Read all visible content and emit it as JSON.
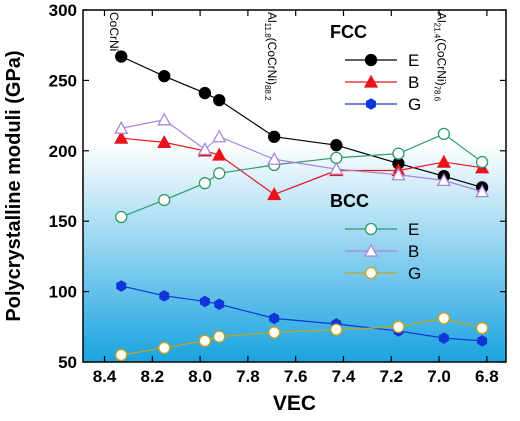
{
  "chart_data": {
    "type": "line",
    "x_label": "VEC",
    "y_label": "Polycrystalline moduli (GPa)",
    "x": [
      8.33,
      8.15,
      7.98,
      7.92,
      7.69,
      7.43,
      7.17,
      6.98,
      6.82
    ],
    "xlim": [
      8.49,
      6.72
    ],
    "xticks": [
      8.4,
      8.2,
      {
        "value": 8,
        "label": "8.0"
      },
      7.8,
      7.6,
      7.4,
      7.2,
      {
        "value": 7,
        "label": "7.0"
      },
      6.8
    ],
    "ylim": [
      50,
      300
    ],
    "yticks": [
      50,
      100,
      150,
      200,
      250,
      300
    ],
    "annotations": [
      {
        "parts": [
          "CoCrNi"
        ],
        "x": 8.36
      },
      {
        "parts": [
          "Al",
          "11.8",
          "(CoCrNi)",
          "88.2"
        ],
        "x": 7.7
      },
      {
        "parts": [
          "Al",
          "21.4",
          "(CoCrNi)",
          "78.6"
        ],
        "x": 6.99
      }
    ],
    "groups": [
      {
        "name": "FCC",
        "filled": true,
        "series": [
          {
            "name": "E",
            "color": "#000000",
            "marker": "circle",
            "values": [
              267,
              253,
              241,
              236,
              210,
              204,
              191,
              182,
              174
            ]
          },
          {
            "name": "B",
            "color": "#e8141b",
            "marker": "triangle",
            "values": [
              209,
              206,
              200,
              197,
              169,
              186,
              186,
              192,
              188
            ]
          },
          {
            "name": "G",
            "color": "#1035d8",
            "marker": "hexagon",
            "values": [
              104,
              97,
              93,
              91,
              81,
              77,
              72,
              67,
              65
            ]
          }
        ]
      },
      {
        "name": "BCC",
        "filled": false,
        "series": [
          {
            "name": "E",
            "color": "#2e9b6a",
            "marker": "circle",
            "values": [
              153,
              165,
              177,
              184,
              190,
              195,
              198,
              212,
              192
            ]
          },
          {
            "name": "B",
            "color": "#a884d8",
            "marker": "triangle",
            "values": [
              216,
              222,
              201,
              210,
              194,
              187,
              183,
              179,
              171
            ]
          },
          {
            "name": "G",
            "color": "#c9a21a",
            "marker": "circle",
            "values": [
              55,
              60,
              65,
              68,
              71,
              73,
              75,
              81,
              74
            ]
          }
        ]
      }
    ]
  }
}
